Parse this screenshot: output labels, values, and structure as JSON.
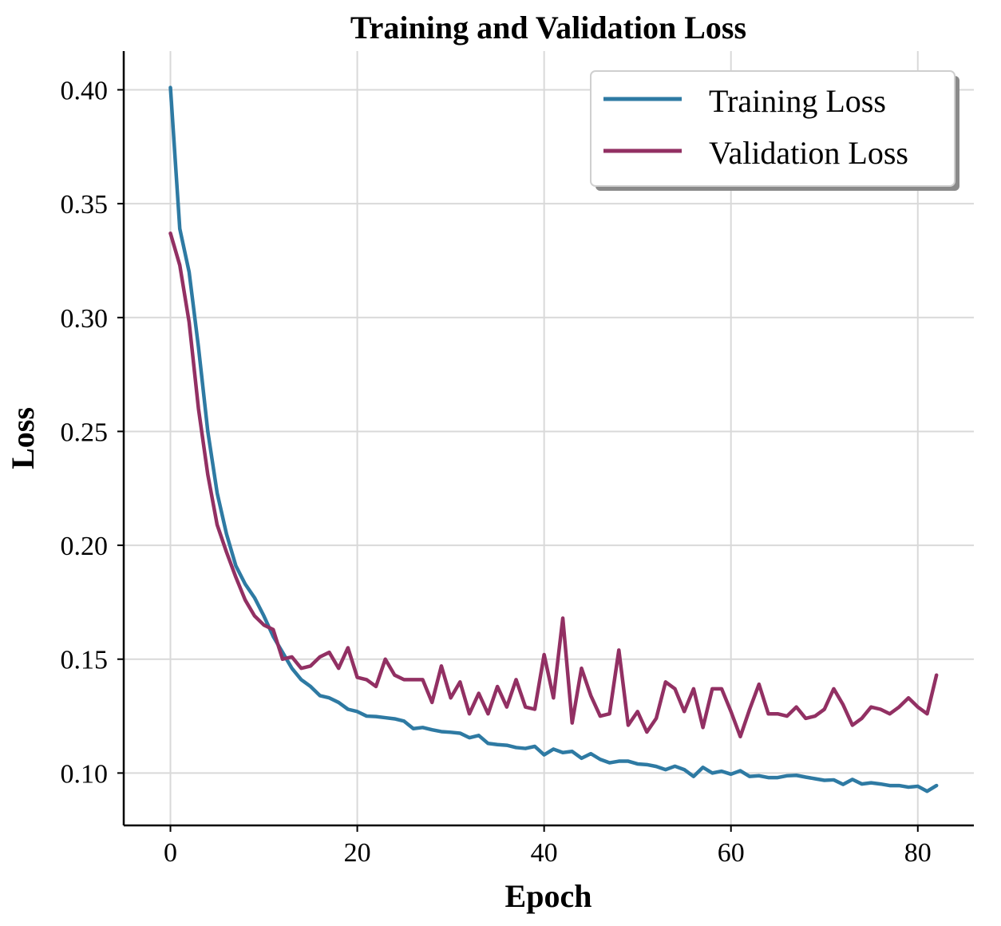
{
  "chart_data": {
    "type": "line",
    "title": "Training and Validation Loss",
    "xlabel": "Epoch",
    "ylabel": "Loss",
    "xlim": [
      -5,
      86
    ],
    "ylim": [
      0.077,
      0.417
    ],
    "xticks": [
      0,
      20,
      40,
      60,
      80
    ],
    "xtick_labels": [
      "0",
      "20",
      "40",
      "60",
      "80"
    ],
    "yticks": [
      0.1,
      0.15,
      0.2,
      0.25,
      0.3,
      0.35,
      0.4
    ],
    "ytick_labels": [
      "0.10",
      "0.15",
      "0.20",
      "0.25",
      "0.30",
      "0.35",
      "0.40"
    ],
    "grid": true,
    "legend_position": "top-right",
    "x": [
      0,
      1,
      2,
      3,
      4,
      5,
      6,
      7,
      8,
      9,
      10,
      11,
      12,
      13,
      14,
      15,
      16,
      17,
      18,
      19,
      20,
      21,
      22,
      23,
      24,
      25,
      26,
      27,
      28,
      29,
      30,
      31,
      32,
      33,
      34,
      35,
      36,
      37,
      38,
      39,
      40,
      41,
      42,
      43,
      44,
      45,
      46,
      47,
      48,
      49,
      50,
      51,
      52,
      53,
      54,
      55,
      56,
      57,
      58,
      59,
      60,
      61,
      62,
      63,
      64,
      65,
      66,
      67,
      68,
      69,
      70,
      71,
      72,
      73,
      74,
      75,
      76,
      77,
      78,
      79,
      80,
      81,
      82
    ],
    "series": [
      {
        "name": "Training Loss",
        "color": "#2e7aa3",
        "values": [
          0.401,
          0.339,
          0.32,
          0.287,
          0.25,
          0.223,
          0.205,
          0.191,
          0.183,
          0.177,
          0.169,
          0.16,
          0.153,
          0.146,
          0.141,
          0.138,
          0.134,
          0.133,
          0.131,
          0.128,
          0.127,
          0.125,
          0.1248,
          0.1243,
          0.1238,
          0.1228,
          0.1195,
          0.12,
          0.119,
          0.1182,
          0.1179,
          0.1175,
          0.1155,
          0.1165,
          0.113,
          0.1125,
          0.1122,
          0.1112,
          0.1108,
          0.1117,
          0.108,
          0.1105,
          0.109,
          0.1095,
          0.1065,
          0.1085,
          0.106,
          0.1045,
          0.1052,
          0.1052,
          0.104,
          0.1037,
          0.1029,
          0.1015,
          0.103,
          0.1015,
          0.0985,
          0.1025,
          0.1,
          0.1008,
          0.0995,
          0.101,
          0.0985,
          0.0988,
          0.098,
          0.098,
          0.0988,
          0.099,
          0.0982,
          0.0975,
          0.0968,
          0.097,
          0.095,
          0.0972,
          0.0952,
          0.0957,
          0.0952,
          0.0945,
          0.0945,
          0.0938,
          0.0942,
          0.092,
          0.0945
        ]
      },
      {
        "name": "Validation Loss",
        "color": "#923063",
        "values": [
          0.337,
          0.323,
          0.298,
          0.26,
          0.231,
          0.209,
          0.197,
          0.186,
          0.176,
          0.169,
          0.165,
          0.163,
          0.15,
          0.151,
          0.146,
          0.147,
          0.151,
          0.153,
          0.146,
          0.155,
          0.142,
          0.141,
          0.138,
          0.15,
          0.143,
          0.141,
          0.141,
          0.141,
          0.131,
          0.147,
          0.133,
          0.14,
          0.126,
          0.135,
          0.126,
          0.138,
          0.129,
          0.141,
          0.129,
          0.128,
          0.152,
          0.133,
          0.168,
          0.122,
          0.146,
          0.134,
          0.125,
          0.126,
          0.154,
          0.121,
          0.127,
          0.118,
          0.124,
          0.14,
          0.137,
          0.127,
          0.137,
          0.12,
          0.137,
          0.137,
          0.127,
          0.116,
          0.128,
          0.139,
          0.126,
          0.126,
          0.125,
          0.129,
          0.124,
          0.125,
          0.128,
          0.137,
          0.13,
          0.121,
          0.124,
          0.129,
          0.128,
          0.126,
          0.129,
          0.133,
          0.129,
          0.126,
          0.143
        ]
      }
    ]
  }
}
